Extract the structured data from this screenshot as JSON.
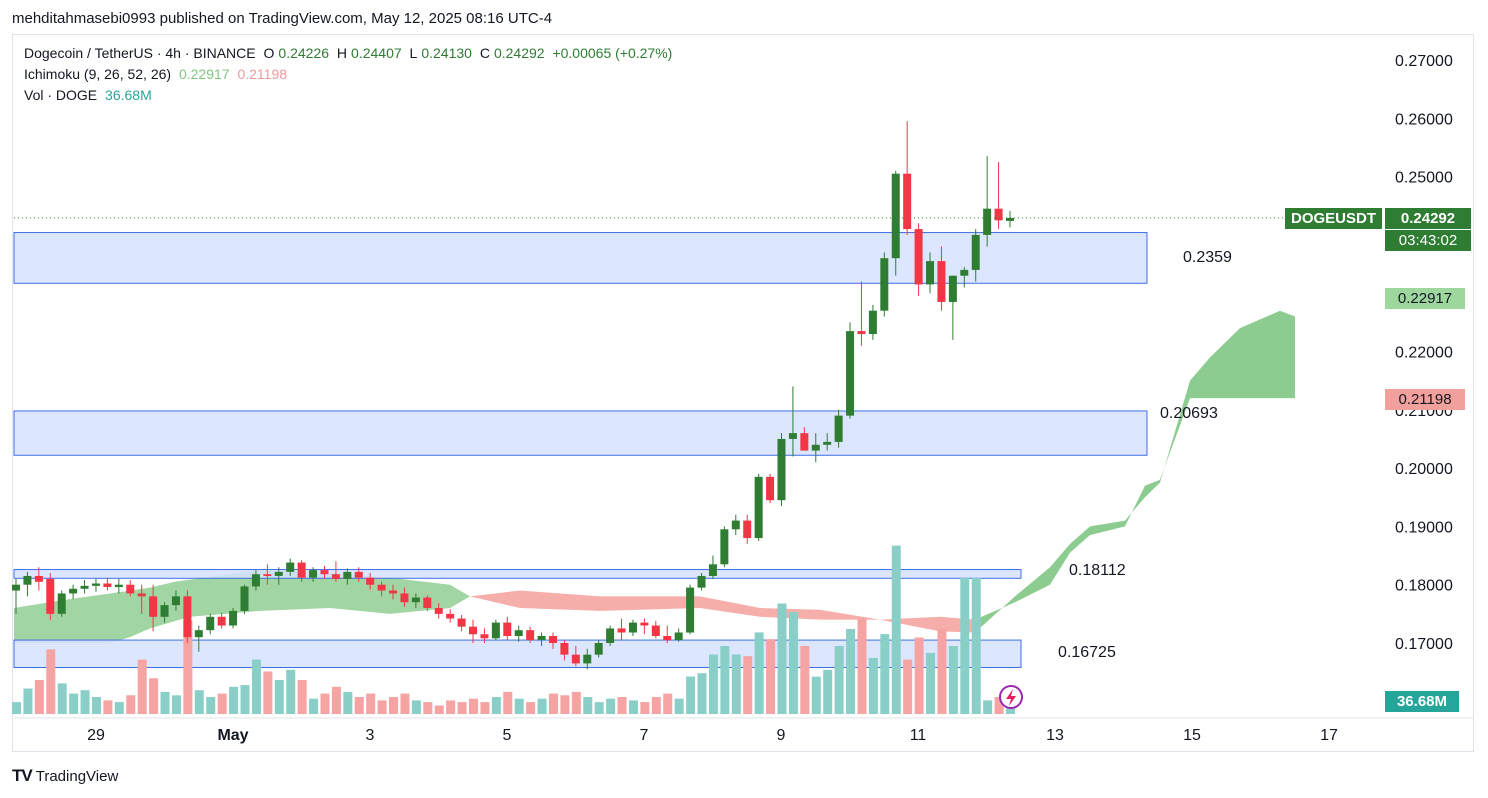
{
  "header": {
    "published_line": "mehditahmasebi0993 published on TradingView.com, May 12, 2025 08:16 UTC-4"
  },
  "legend": {
    "symbol": "Dogecoin / TetherUS · 4h · BINANCE",
    "o_label": "O",
    "o": "0.24226",
    "h_label": "H",
    "h": "0.24407",
    "l_label": "L",
    "l": "0.24130",
    "c_label": "C",
    "c": "0.24292",
    "change": "+0.00065 (+0.27%)",
    "ichimoku_label": "Ichimoku (9, 26, 52, 26)",
    "ichimoku_a": "0.22917",
    "ichimoku_b": "0.21198",
    "vol_label": "Vol · DOGE",
    "vol_value": "36.68M"
  },
  "price_tags": {
    "symbol": "DOGEUSDT",
    "last": "0.24292",
    "countdown": "03:43:02",
    "span_a": "0.22917",
    "span_b": "0.21198",
    "volume": "36.68M"
  },
  "levels": [
    "0.2359",
    "0.20693",
    "0.18112",
    "0.16725"
  ],
  "footer": {
    "brand": "TradingView",
    "logo_text": "TV"
  },
  "colors": {
    "up": "#2e7d32",
    "down": "#f23645",
    "cloud_up": "#81c784",
    "cloud_down": "#f4a09b",
    "zone": "#d6e2ff",
    "zone_border": "#3e6ee6"
  },
  "chart_data": {
    "type": "candlestick",
    "y_axis_ticks": [
      "0.27000",
      "0.26000",
      "0.25000",
      "0.22000",
      "0.21000",
      "0.20000",
      "0.19000",
      "0.18000",
      "0.17000"
    ],
    "ylim": [
      0.162,
      0.274
    ],
    "x_axis_ticks": [
      "29",
      "May",
      "3",
      "5",
      "7",
      "9",
      "11",
      "13",
      "15",
      "17"
    ],
    "zones": [
      {
        "label": "0.2359",
        "low": 0.2317,
        "high": 0.2404
      },
      {
        "label": "0.20693",
        "low": 0.2022,
        "high": 0.2098
      },
      {
        "label": "0.18112",
        "low": 0.1811,
        "high": 0.1826
      },
      {
        "label": "0.16725",
        "low": 0.1658,
        "high": 0.1705
      }
    ],
    "candles": [
      [
        0.179,
        0.181,
        0.175,
        0.18
      ],
      [
        0.18,
        0.1822,
        0.178,
        0.1815
      ],
      [
        0.1815,
        0.183,
        0.179,
        0.1805
      ],
      [
        0.181,
        0.182,
        0.174,
        0.175
      ],
      [
        0.175,
        0.179,
        0.1745,
        0.1785
      ],
      [
        0.1785,
        0.18,
        0.1775,
        0.1793
      ],
      [
        0.1793,
        0.1808,
        0.1785,
        0.1798
      ],
      [
        0.1798,
        0.181,
        0.1788,
        0.1802
      ],
      [
        0.1802,
        0.1812,
        0.179,
        0.1796
      ],
      [
        0.1796,
        0.181,
        0.1785,
        0.18
      ],
      [
        0.18,
        0.1808,
        0.178,
        0.1785
      ],
      [
        0.1785,
        0.18,
        0.175,
        0.178
      ],
      [
        0.178,
        0.18,
        0.172,
        0.1745
      ],
      [
        0.1745,
        0.177,
        0.1735,
        0.1765
      ],
      [
        0.1765,
        0.179,
        0.1755,
        0.178
      ],
      [
        0.178,
        0.179,
        0.17,
        0.171
      ],
      [
        0.171,
        0.173,
        0.1685,
        0.1722
      ],
      [
        0.1722,
        0.175,
        0.1715,
        0.1745
      ],
      [
        0.1745,
        0.1752,
        0.1725,
        0.173
      ],
      [
        0.173,
        0.176,
        0.1725,
        0.1755
      ],
      [
        0.1755,
        0.18,
        0.175,
        0.1797
      ],
      [
        0.1797,
        0.1825,
        0.179,
        0.1818
      ],
      [
        0.1818,
        0.1835,
        0.18,
        0.1815
      ],
      [
        0.1815,
        0.183,
        0.18,
        0.1822
      ],
      [
        0.1822,
        0.1845,
        0.1815,
        0.1838
      ],
      [
        0.1838,
        0.1842,
        0.1805,
        0.1812
      ],
      [
        0.1812,
        0.183,
        0.1805,
        0.1825
      ],
      [
        0.1825,
        0.1832,
        0.181,
        0.1818
      ],
      [
        0.1818,
        0.184,
        0.1805,
        0.181
      ],
      [
        0.181,
        0.1828,
        0.18,
        0.1822
      ],
      [
        0.1822,
        0.183,
        0.1805,
        0.1812
      ],
      [
        0.1812,
        0.182,
        0.1792,
        0.18
      ],
      [
        0.18,
        0.1805,
        0.178,
        0.179
      ],
      [
        0.179,
        0.18,
        0.1775,
        0.1785
      ],
      [
        0.1785,
        0.1795,
        0.1762,
        0.177
      ],
      [
        0.177,
        0.1785,
        0.176,
        0.1778
      ],
      [
        0.1778,
        0.1782,
        0.1755,
        0.176
      ],
      [
        0.176,
        0.1768,
        0.1742,
        0.175
      ],
      [
        0.175,
        0.1758,
        0.1735,
        0.1742
      ],
      [
        0.1742,
        0.1748,
        0.172,
        0.1728
      ],
      [
        0.1728,
        0.174,
        0.17,
        0.1715
      ],
      [
        0.1715,
        0.1725,
        0.17,
        0.1708
      ],
      [
        0.1708,
        0.174,
        0.1705,
        0.1735
      ],
      [
        0.1735,
        0.1745,
        0.1705,
        0.1712
      ],
      [
        0.1712,
        0.173,
        0.1702,
        0.1722
      ],
      [
        0.1722,
        0.1728,
        0.17,
        0.1705
      ],
      [
        0.1705,
        0.1718,
        0.1695,
        0.1712
      ],
      [
        0.1712,
        0.1718,
        0.169,
        0.17
      ],
      [
        0.17,
        0.1705,
        0.167,
        0.168
      ],
      [
        0.168,
        0.1695,
        0.166,
        0.1665
      ],
      [
        0.1665,
        0.169,
        0.1655,
        0.168
      ],
      [
        0.168,
        0.1705,
        0.1675,
        0.17
      ],
      [
        0.17,
        0.173,
        0.1695,
        0.1725
      ],
      [
        0.1725,
        0.1742,
        0.1705,
        0.1718
      ],
      [
        0.1718,
        0.174,
        0.1712,
        0.1735
      ],
      [
        0.1735,
        0.1742,
        0.1715,
        0.173
      ],
      [
        0.173,
        0.1738,
        0.1708,
        0.1712
      ],
      [
        0.1712,
        0.173,
        0.17,
        0.1705
      ],
      [
        0.1705,
        0.1725,
        0.1702,
        0.1718
      ],
      [
        0.1718,
        0.18,
        0.1715,
        0.1795
      ],
      [
        0.1795,
        0.182,
        0.179,
        0.1815
      ],
      [
        0.1815,
        0.185,
        0.181,
        0.1835
      ],
      [
        0.1835,
        0.19,
        0.183,
        0.1895
      ],
      [
        0.1895,
        0.192,
        0.1885,
        0.191
      ],
      [
        0.191,
        0.192,
        0.187,
        0.188
      ],
      [
        0.188,
        0.199,
        0.1875,
        0.1985
      ],
      [
        0.1985,
        0.199,
        0.194,
        0.1945
      ],
      [
        0.1945,
        0.206,
        0.1935,
        0.205
      ],
      [
        0.205,
        0.214,
        0.202,
        0.206
      ],
      [
        0.206,
        0.207,
        0.203,
        0.203
      ],
      [
        0.203,
        0.206,
        0.201,
        0.204
      ],
      [
        0.204,
        0.206,
        0.203,
        0.2045
      ],
      [
        0.2045,
        0.21,
        0.2035,
        0.209
      ],
      [
        0.209,
        0.225,
        0.2085,
        0.2235
      ],
      [
        0.2235,
        0.232,
        0.221,
        0.223
      ],
      [
        0.223,
        0.228,
        0.222,
        0.227
      ],
      [
        0.227,
        0.237,
        0.226,
        0.236
      ],
      [
        0.236,
        0.251,
        0.233,
        0.2505
      ],
      [
        0.2505,
        0.2595,
        0.24,
        0.241
      ],
      [
        0.241,
        0.242,
        0.2295,
        0.2315
      ],
      [
        0.2315,
        0.237,
        0.23,
        0.2355
      ],
      [
        0.2355,
        0.238,
        0.227,
        0.2285
      ],
      [
        0.2285,
        0.233,
        0.222,
        0.233
      ],
      [
        0.233,
        0.2345,
        0.231,
        0.234
      ],
      [
        0.234,
        0.241,
        0.232,
        0.24
      ],
      [
        0.24,
        0.2535,
        0.238,
        0.2445
      ],
      [
        0.2445,
        0.2525,
        0.241,
        0.2425
      ],
      [
        0.2424,
        0.2441,
        0.2413,
        0.2429
      ]
    ],
    "volume_max_label": "36.68M"
  }
}
